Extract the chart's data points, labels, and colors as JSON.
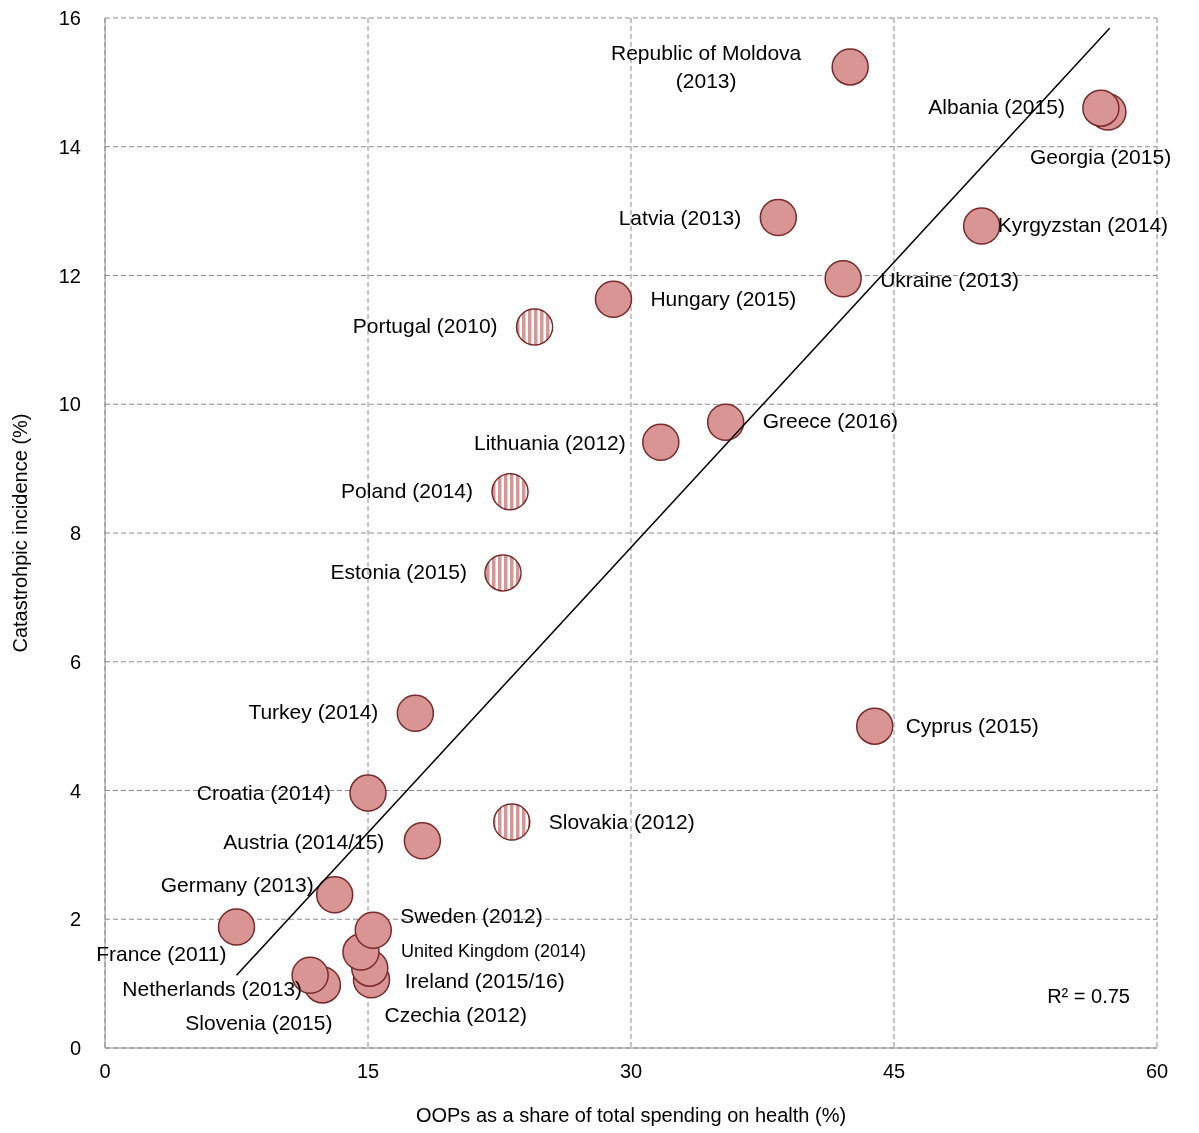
{
  "chart_data": {
    "type": "scatter",
    "xlabel": "OOPs as a share of total spending on health (%)",
    "ylabel": "Catastrohpic incidence (%)",
    "xlim": [
      0,
      60
    ],
    "xticks": [
      0,
      15,
      30,
      45,
      60
    ],
    "ylim": [
      0,
      16
    ],
    "yticks": [
      0,
      2,
      4,
      6,
      8,
      10,
      12,
      14,
      16
    ],
    "grid": true,
    "marker": "circle",
    "series": [
      {
        "color": "#d99594",
        "x": [
          42.5,
          57.2,
          56.8,
          38.4,
          50.0,
          42.1,
          29.0,
          35.4,
          31.7,
          17.7,
          43.9,
          15.0,
          18.1,
          13.1,
          7.5,
          15.2,
          15.1,
          14.6,
          15.3,
          12.4,
          11.7
        ],
        "values": [
          15.24,
          14.54,
          14.6,
          12.9,
          12.77,
          11.95,
          11.63,
          9.72,
          9.41,
          5.2,
          5.0,
          3.96,
          3.22,
          2.38,
          1.88,
          1.06,
          1.24,
          1.49,
          1.83,
          0.98,
          1.13
        ]
      },
      {
        "color": "#d99594",
        "x": [
          24.5,
          23.1,
          22.7,
          23.2
        ],
        "values": [
          11.2,
          8.64,
          7.38,
          3.51
        ]
      },
      {
        "type": "line",
        "marker": "none",
        "color": "#000000",
        "x": [
          7.5,
          57.3
        ],
        "values": [
          1.13,
          15.84
        ]
      }
    ],
    "annotations": [
      {
        "text": "Republic of Moldova (2013)",
        "x": 42.5,
        "y": 15.24
      },
      {
        "text": "Georgia (2015)",
        "x": 57.2,
        "y": 14.54
      },
      {
        "text": "Albania (2015)",
        "x": 56.8,
        "y": 14.6
      },
      {
        "text": "Latvia (2013)",
        "x": 38.4,
        "y": 12.9
      },
      {
        "text": "Kyrgyzstan (2014)",
        "x": 50.0,
        "y": 12.77
      },
      {
        "text": "Ukraine (2013)",
        "x": 42.1,
        "y": 11.95
      },
      {
        "text": "Hungary (2015)",
        "x": 29.0,
        "y": 11.63
      },
      {
        "text": "Greece (2016)",
        "x": 35.4,
        "y": 9.72
      },
      {
        "text": "Lithuania (2012)",
        "x": 31.7,
        "y": 9.41
      },
      {
        "text": "Turkey (2014)",
        "x": 17.7,
        "y": 5.2
      },
      {
        "text": "Cyprus (2015)",
        "x": 43.9,
        "y": 5.0
      },
      {
        "text": "Croatia (2014)",
        "x": 15.0,
        "y": 3.96
      },
      {
        "text": "Austria (2014/15)",
        "x": 18.1,
        "y": 3.22
      },
      {
        "text": "Germany (2013)",
        "x": 13.1,
        "y": 2.38
      },
      {
        "text": "France (2011)",
        "x": 7.5,
        "y": 1.88
      },
      {
        "text": "Czechia (2012)",
        "x": 15.2,
        "y": 1.06
      },
      {
        "text": "Ireland (2015/16)",
        "x": 15.1,
        "y": 1.24
      },
      {
        "text": "United Kingdom (2014)",
        "x": 14.6,
        "y": 1.49
      },
      {
        "text": "Sweden (2012)",
        "x": 15.3,
        "y": 1.83
      },
      {
        "text": "Slovenia (2015)",
        "x": 12.4,
        "y": 0.98
      },
      {
        "text": "Netherlands (2013)",
        "x": 11.7,
        "y": 1.13
      },
      {
        "text": "Portugal (2010)",
        "x": 24.5,
        "y": 11.2
      },
      {
        "text": "Poland (2014)",
        "x": 23.1,
        "y": 8.64
      },
      {
        "text": "Estonia (2015)",
        "x": 22.7,
        "y": 7.38
      },
      {
        "text": "Slovakia (2012)",
        "x": 23.2,
        "y": 3.51
      },
      "R² = 0.75"
    ]
  }
}
